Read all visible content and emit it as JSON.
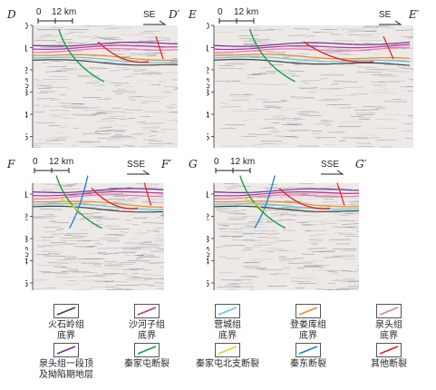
{
  "panels": [
    {
      "id": "D",
      "start": "D",
      "end": "D′",
      "direction": "SE",
      "scale_zero": "0",
      "scale_len": "12 km",
      "ylabel": "t/s",
      "ticks": [
        "0",
        "1",
        "2",
        "3",
        "4",
        "5"
      ]
    },
    {
      "id": "E",
      "start": "E",
      "end": "E′",
      "direction": "SE",
      "scale_zero": "0",
      "scale_len": "12 km",
      "ylabel": "t/s",
      "ticks": [
        "0",
        "1",
        "2",
        "3",
        "4",
        "5"
      ]
    },
    {
      "id": "F",
      "start": "F",
      "end": "F′",
      "direction": "SSE",
      "scale_zero": "0",
      "scale_len": "12 km",
      "ylabel": "t/s",
      "ticks": [
        "1",
        "2",
        "3",
        "4",
        "5"
      ]
    },
    {
      "id": "G",
      "start": "G",
      "end": "G′",
      "direction": "SSE",
      "scale_zero": "0",
      "scale_len": "12 km",
      "ylabel": "t/s",
      "ticks": [
        "1",
        "2",
        "3",
        "4",
        "5"
      ]
    }
  ],
  "legend": [
    {
      "label": "火石岭组底界",
      "line1": "火石岭组",
      "line2": "底界",
      "color": "#444444"
    },
    {
      "label": "沙河子组底界",
      "line1": "沙河子组",
      "line2": "底界",
      "color": "#c0308f"
    },
    {
      "label": "营城组底界",
      "line1": "营城组",
      "line2": "底界",
      "color": "#5ec8e8"
    },
    {
      "label": "登娄库组底界",
      "line1": "登娄库组",
      "line2": "底界",
      "color": "#f08a1e"
    },
    {
      "label": "泉头组底界",
      "line1": "泉头组",
      "line2": "底界",
      "color": "#e07ab0"
    },
    {
      "label": "泉头组一段顶及拗陷期地层",
      "line1": "泉头组一段顶",
      "line2": "及拗陷期地层",
      "color": "#7a2aa0"
    },
    {
      "label": "秦家屯断裂",
      "line1": "秦家屯断裂",
      "line2": "",
      "color": "#1e9a4a"
    },
    {
      "label": "秦家屯北支断裂",
      "line1": "秦家屯北支断裂",
      "line2": "",
      "color": "#e6d21e"
    },
    {
      "label": "秦东断裂",
      "line1": "秦东断裂",
      "line2": "",
      "color": "#1e7fd0"
    },
    {
      "label": "其他断裂",
      "line1": "其他断裂",
      "line2": "",
      "color": "#e02020"
    }
  ]
}
